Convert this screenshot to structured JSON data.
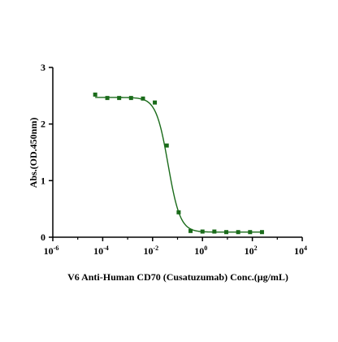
{
  "chart_data": {
    "type": "scatter",
    "title": "",
    "xlabel": "V6 Anti-Human CD70 (Cusatuzumab) Conc.(μg/mL)",
    "ylabel": "Abs.(OD.450nm)",
    "x_scale": "log10",
    "xlim": [
      1e-06,
      10000
    ],
    "ylim": [
      0,
      3
    ],
    "grid": false,
    "x_ticks": [
      {
        "value": 1e-06,
        "base": "10",
        "exp": "-6"
      },
      {
        "value": 0.0001,
        "base": "10",
        "exp": "-4"
      },
      {
        "value": 0.01,
        "base": "10",
        "exp": "-2"
      },
      {
        "value": 1,
        "base": "10",
        "exp": "0"
      },
      {
        "value": 100,
        "base": "10",
        "exp": "2"
      },
      {
        "value": 10000,
        "base": "10",
        "exp": "4"
      }
    ],
    "y_ticks": [
      {
        "value": 0,
        "label": "0"
      },
      {
        "value": 1,
        "label": "1"
      },
      {
        "value": 2,
        "label": "2"
      },
      {
        "value": 3,
        "label": "3"
      }
    ],
    "series": [
      {
        "color": "#1a6b1a",
        "marker": "square",
        "x": [
          5e-05,
          0.000153,
          0.000457,
          0.00137,
          0.00412,
          0.0123,
          0.037,
          0.111,
          0.333,
          1,
          3,
          9,
          27,
          81,
          243
        ],
        "y": [
          2.52,
          2.46,
          2.46,
          2.46,
          2.45,
          2.38,
          1.62,
          0.44,
          0.11,
          0.1,
          0.1,
          0.09,
          0.09,
          0.09,
          0.09
        ]
      }
    ],
    "fit": {
      "model": "4PL",
      "color": "#1a6b1a",
      "top": 2.47,
      "bottom": 0.09,
      "ec50": 0.042,
      "hill": 1.8,
      "x_start": 5e-05,
      "x_end": 243
    }
  }
}
